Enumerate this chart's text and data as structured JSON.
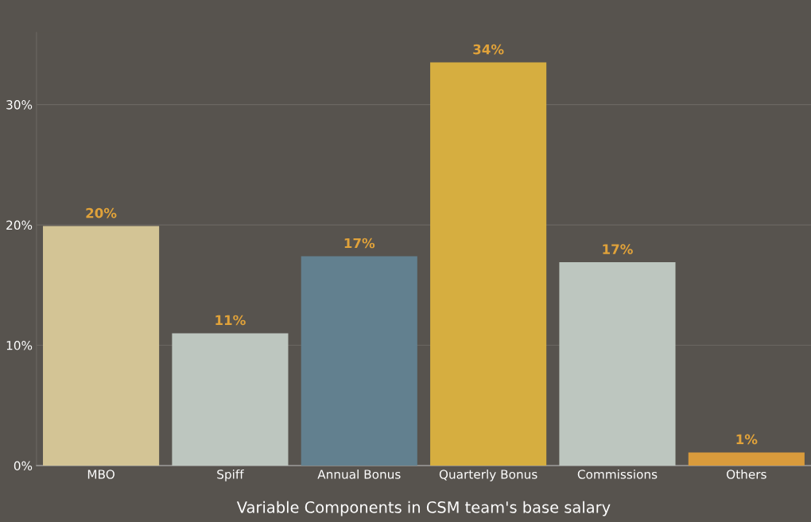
{
  "chart_data": {
    "type": "bar",
    "xlabel": "Variable Components in CSM team's base salary",
    "categories": [
      "MBO",
      "Spiff",
      "Annual Bonus",
      "Quarterly Bonus",
      "Commissions",
      "Others"
    ],
    "values": [
      19.9,
      11.0,
      17.4,
      33.5,
      16.9,
      1.1
    ],
    "value_labels": [
      "20%",
      "11%",
      "17%",
      "34%",
      "17%",
      "1%"
    ],
    "colors": [
      "#d3c495",
      "#bdc6bf",
      "#62808f",
      "#d6ae40",
      "#bdc6bf",
      "#d99b3c"
    ],
    "yticks": [
      {
        "value": 0,
        "label": "0%"
      },
      {
        "value": 10,
        "label": "10%"
      },
      {
        "value": 20,
        "label": "20%"
      },
      {
        "value": 30,
        "label": "30%"
      }
    ],
    "ylim": [
      0,
      36
    ],
    "grid": "y",
    "legend": false
  }
}
